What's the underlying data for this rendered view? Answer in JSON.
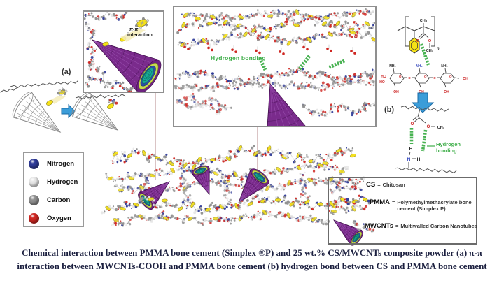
{
  "palette": {
    "nitrogen_blue": "#2e3a97",
    "hydrogen_white": "#e6e6e6",
    "carbon_gray": "#8f8f8f",
    "oxygen_red": "#cf2722",
    "ring_yellow": "#f6e216",
    "bond_green": "#3fae49",
    "nanotube_purple": "#7a2b8c",
    "nanotube_teal": "#17ac96",
    "nanotube_blue": "#2b4fa0",
    "nanotube_lime": "#c7dd4e",
    "arrow_blue": "#3b9dd9",
    "caption_navy": "#1c2040",
    "callout_line": "#b5898b",
    "wire_gray": "#8a8a8a"
  },
  "figure": {
    "panel_a_label": "(a)",
    "panel_b_label": "(b)",
    "pi_label": "π-π",
    "pi_interaction_word": "interaction",
    "hydrogen_bonding_center": "Hydrogen bonding",
    "hydrogen_bonding_b_line1": "Hydrogen",
    "hydrogen_bonding_b_line2": "bonding"
  },
  "pmma_formula": {
    "ch3_top": "CH₃",
    "subscript_n": "n",
    "carbonyl_o": "O",
    "ester_o": "O",
    "ester_ch3": "CH₃"
  },
  "chitosan_formula": {
    "nh2": "NH₂",
    "ho": "HO",
    "oh": "OH",
    "ring_o": "O"
  },
  "b_formula": {
    "carbonyl_o": "O",
    "ester_o": "O",
    "ester_ch3": "CH₃",
    "h_bond1": "H",
    "n_amine": "N",
    "h_bond2": "H"
  },
  "atom_legend": {
    "items": [
      {
        "name": "Nitrogen",
        "color": "#2e3a97"
      },
      {
        "name": "Hydrogen",
        "color": "#e6e6e6"
      },
      {
        "name": "Carbon",
        "color": "#8f8f8f"
      },
      {
        "name": "Oxygen",
        "color": "#cf2722"
      }
    ]
  },
  "abbreviation_legend": {
    "items": [
      {
        "abbr": "CS",
        "eq": "=",
        "definition": "Chitosan"
      },
      {
        "abbr": "PMMA",
        "eq": "=",
        "definition": "Polymethylmethacrylate bone cement (Simplex P)"
      },
      {
        "abbr": "MWCNTs",
        "eq": "=",
        "definition": "Multiwalled Carbon Nanotubes"
      }
    ]
  },
  "caption": {
    "line1": "Chemical interaction between PMMA bone cement (Simplex ®P) and 25 wt.% CS/MWCNTs composite powder (a) π-π",
    "line2": "interaction between MWCNTs-COOH and PMMA bone cement (b) hydrogen bond between CS and PMMA bone cement"
  }
}
